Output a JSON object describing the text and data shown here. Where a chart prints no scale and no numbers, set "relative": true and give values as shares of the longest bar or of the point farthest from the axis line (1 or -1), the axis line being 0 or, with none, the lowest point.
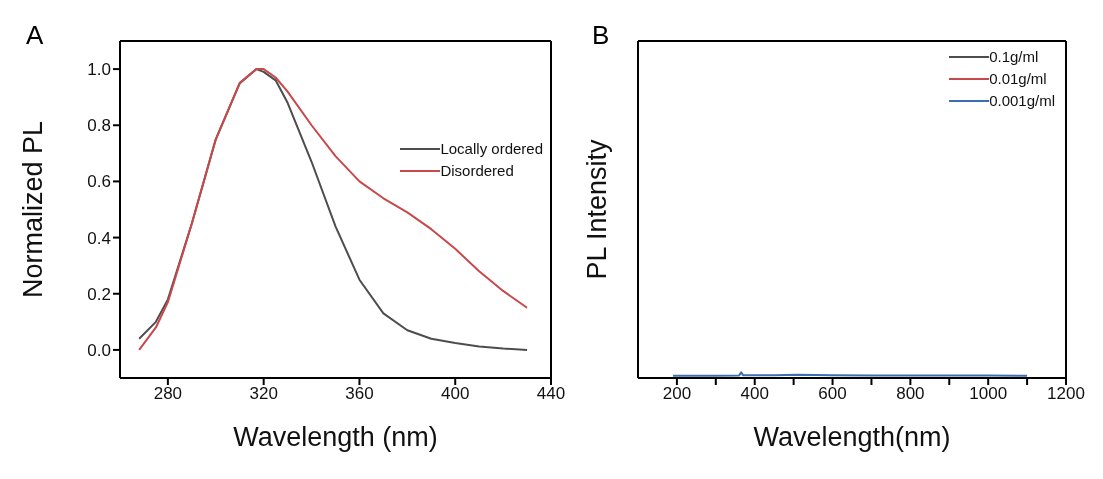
{
  "chart_data": [
    {
      "type": "line",
      "title": "A",
      "xlabel": "Wavelength (nm)",
      "ylabel": "Normalized PL",
      "xlim": [
        260,
        440
      ],
      "xticks": [
        280,
        320,
        360,
        400,
        440
      ],
      "ylim": [
        -0.1,
        1.1
      ],
      "yticks": [
        {
          "value": 0,
          "label": "0.0"
        },
        0.2,
        0.4,
        0.6,
        0.8,
        {
          "value": 1,
          "label": "1.0"
        }
      ],
      "legend": "right",
      "x": [
        268,
        275,
        280,
        290,
        300,
        310,
        317,
        320,
        325,
        330,
        340,
        350,
        360,
        370,
        380,
        390,
        400,
        410,
        420,
        430
      ],
      "series": [
        {
          "name": "Locally ordered",
          "color": "#4d4d4d",
          "values": [
            0.04,
            0.1,
            0.18,
            0.45,
            0.75,
            0.95,
            1.0,
            0.99,
            0.96,
            0.88,
            0.67,
            0.44,
            0.25,
            0.13,
            0.07,
            0.04,
            0.025,
            0.012,
            0.005,
            0.0
          ]
        },
        {
          "name": "Disordered",
          "color": "#c8494b",
          "values": [
            0.0,
            0.08,
            0.17,
            0.45,
            0.75,
            0.95,
            1.0,
            1.0,
            0.97,
            0.92,
            0.8,
            0.69,
            0.6,
            0.54,
            0.49,
            0.43,
            0.36,
            0.28,
            0.21,
            0.15
          ]
        }
      ]
    },
    {
      "type": "line",
      "title": "B",
      "xlabel": "Wavelength(nm)",
      "ylabel": "PL Intensity",
      "relative": true,
      "xlim": [
        100,
        1200
      ],
      "xticks": [
        200,
        {
          "value": 300,
          "label": null
        },
        400,
        {
          "value": 500,
          "label": null
        },
        600,
        {
          "value": 700,
          "label": null
        },
        800,
        {
          "value": 900,
          "label": null
        },
        1000,
        {
          "value": 1100,
          "label": null
        },
        1200
      ],
      "legend": "top right",
      "x": [
        190,
        300,
        360,
        365,
        370,
        450,
        510,
        600,
        700,
        800,
        900,
        1000,
        1100
      ],
      "series": [
        {
          "name": "0.1g/ml",
          "color": "#4d4d4d",
          "values": [
            null,
            null,
            null,
            null,
            null,
            null,
            null,
            null,
            null,
            null,
            null,
            null,
            null
          ]
        },
        {
          "name": "0.01g/ml",
          "color": "#c8494b",
          "values": [
            null,
            null,
            null,
            null,
            null,
            null,
            null,
            null,
            null,
            null,
            null,
            null,
            null
          ]
        },
        {
          "name": "0.001g/ml",
          "color": "#3a6fb5",
          "values": [
            0.4,
            0.4,
            0.45,
            1.0,
            0.5,
            0.5,
            0.6,
            0.5,
            0.45,
            0.45,
            0.45,
            0.45,
            0.4
          ]
        }
      ]
    }
  ]
}
